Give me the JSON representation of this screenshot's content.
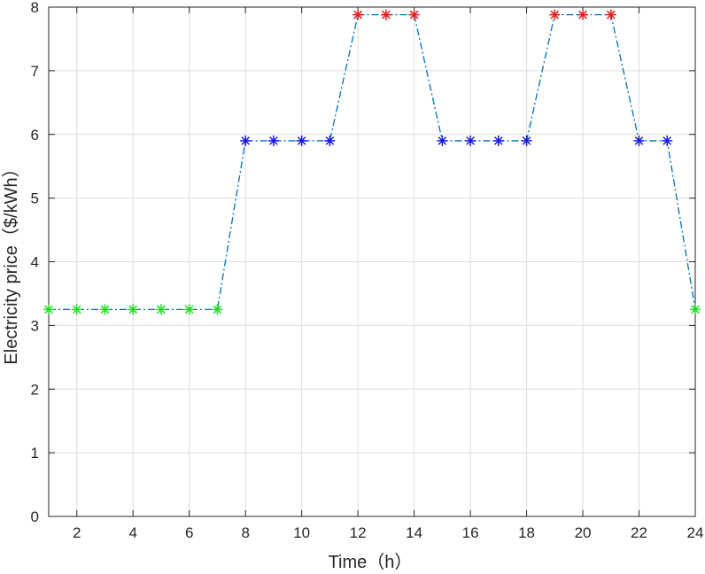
{
  "chart_data": {
    "type": "line",
    "xlabel": "Time（h）",
    "ylabel": "Electricity price（$/kWh）",
    "xlim": [
      1,
      24
    ],
    "ylim": [
      0,
      8
    ],
    "xticks": [
      2,
      4,
      6,
      8,
      10,
      12,
      14,
      16,
      18,
      20,
      22,
      24
    ],
    "yticks": [
      0,
      1,
      2,
      3,
      4,
      5,
      6,
      7,
      8
    ],
    "grid": true,
    "line_style": "dash-dot",
    "marker": "asterisk",
    "line_color": "#0072BD",
    "x": [
      1,
      2,
      3,
      4,
      5,
      6,
      7,
      8,
      9,
      10,
      11,
      12,
      13,
      14,
      15,
      16,
      17,
      18,
      19,
      20,
      21,
      22,
      23,
      24
    ],
    "y": [
      3.25,
      3.25,
      3.25,
      3.25,
      3.25,
      3.25,
      3.25,
      5.9,
      5.9,
      5.9,
      5.9,
      7.88,
      7.88,
      7.88,
      5.9,
      5.9,
      5.9,
      5.9,
      7.88,
      7.88,
      7.88,
      5.9,
      5.9,
      3.25
    ],
    "marker_colors": {
      "low": "#22dd22",
      "mid": "#1a1ae6",
      "high": "#ee1c1c"
    },
    "levels": [
      "low",
      "low",
      "low",
      "low",
      "low",
      "low",
      "low",
      "mid",
      "mid",
      "mid",
      "mid",
      "high",
      "high",
      "high",
      "mid",
      "mid",
      "mid",
      "mid",
      "high",
      "high",
      "high",
      "mid",
      "mid",
      "low"
    ]
  }
}
